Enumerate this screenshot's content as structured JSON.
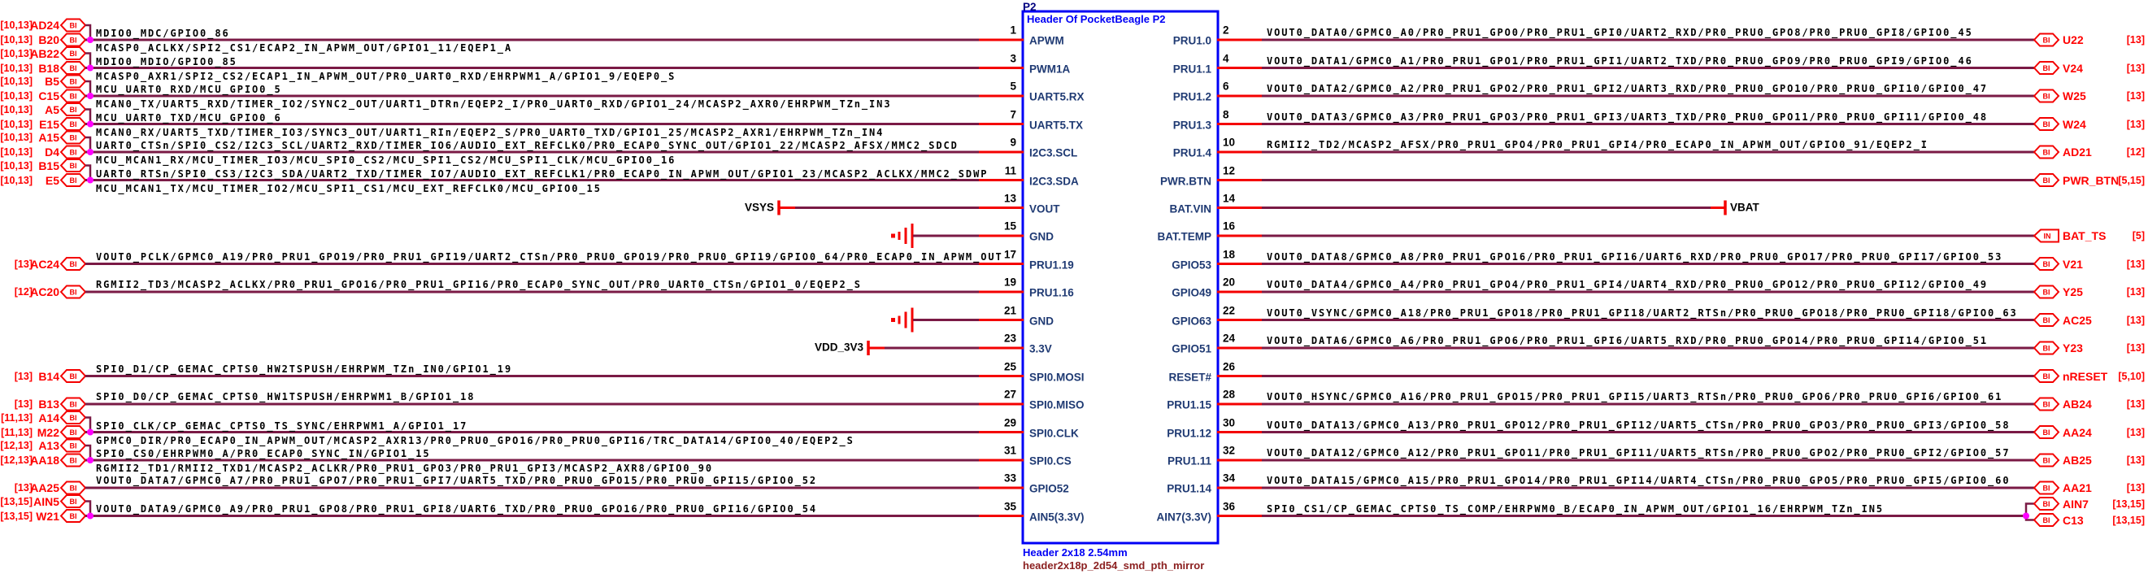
{
  "colors": {
    "wire": "#7a1a45",
    "pin_stub": "#f40000",
    "port_red": "#f40000",
    "junction": "#ff00ff",
    "box_blue": "#0000f5",
    "pin_name_blue": "#1f3a73",
    "refdes_navy": "#000080",
    "footprint_maroon": "#8b1f1f",
    "text_black": "#000000"
  },
  "schematic": {
    "refdes": "P2",
    "title": "Header Of PocketBeagle P2",
    "footer_type": "Header 2x18 2.54mm",
    "footer_footprint": "header2x18p_2d54_smd_pth_mirror",
    "port_labels": {
      "bidirectional": "BI",
      "input": "IN"
    },
    "pins_left": [
      {
        "num": "1",
        "name": "APWM"
      },
      {
        "num": "3",
        "name": "PWM1A"
      },
      {
        "num": "5",
        "name": "UART5.RX"
      },
      {
        "num": "7",
        "name": "UART5.TX"
      },
      {
        "num": "9",
        "name": "I2C3.SCL"
      },
      {
        "num": "11",
        "name": "I2C3.SDA"
      },
      {
        "num": "13",
        "name": "VOUT"
      },
      {
        "num": "15",
        "name": "GND"
      },
      {
        "num": "17",
        "name": "PRU1.19"
      },
      {
        "num": "19",
        "name": "PRU1.16"
      },
      {
        "num": "21",
        "name": "GND"
      },
      {
        "num": "23",
        "name": "3.3V"
      },
      {
        "num": "25",
        "name": "SPI0.MOSI"
      },
      {
        "num": "27",
        "name": "SPI0.MISO"
      },
      {
        "num": "29",
        "name": "SPI0.CLK"
      },
      {
        "num": "31",
        "name": "SPI0.CS"
      },
      {
        "num": "33",
        "name": "GPIO52"
      },
      {
        "num": "35",
        "name": "AIN5(3.3V)"
      }
    ],
    "pins_right": [
      {
        "num": "2",
        "name": "PRU1.0"
      },
      {
        "num": "4",
        "name": "PRU1.1"
      },
      {
        "num": "6",
        "name": "PRU1.2"
      },
      {
        "num": "8",
        "name": "PRU1.3"
      },
      {
        "num": "10",
        "name": "PRU1.4"
      },
      {
        "num": "12",
        "name": "PWR.BTN"
      },
      {
        "num": "14",
        "name": "BAT.VIN"
      },
      {
        "num": "16",
        "name": "BAT.TEMP"
      },
      {
        "num": "18",
        "name": "GPIO53"
      },
      {
        "num": "20",
        "name": "GPIO49"
      },
      {
        "num": "22",
        "name": "GPIO63"
      },
      {
        "num": "24",
        "name": "GPIO51"
      },
      {
        "num": "26",
        "name": "RESET#"
      },
      {
        "num": "28",
        "name": "PRU1.15"
      },
      {
        "num": "30",
        "name": "PRU1.12"
      },
      {
        "num": "32",
        "name": "PRU1.11"
      },
      {
        "num": "34",
        "name": "PRU1.14"
      },
      {
        "num": "36",
        "name": "AIN7(3.3V)"
      }
    ],
    "nets_left": [
      {
        "kind": "pair",
        "a": {
          "refs": "[10,13]",
          "ball": "AD24",
          "net": "MDIO0_MDC/GPIO0_86"
        },
        "b": {
          "refs": "[10,13]",
          "ball": "B20",
          "net": "MCASP0_ACLKX/SPI2_CS1/ECAP2_IN_APWM_OUT/GPIO1_11/EQEP1_A"
        }
      },
      {
        "kind": "pair",
        "a": {
          "refs": "[10,13]",
          "ball": "AB22",
          "net": "MDIO0_MDIO/GPIO0_85"
        },
        "b": {
          "refs": "[10,13]",
          "ball": "B18",
          "net": "MCASP0_AXR1/SPI2_CS2/ECAP1_IN_APWM_OUT/PR0_UART0_RXD/EHRPWM1_A/GPIO1_9/EQEP0_S"
        }
      },
      {
        "kind": "pair",
        "a": {
          "refs": "[10,13]",
          "ball": "B5",
          "net": "MCU_UART0_RXD/MCU_GPIO0_5"
        },
        "b": {
          "refs": "[10,13]",
          "ball": "C15",
          "net": "MCAN0_TX/UART5_RXD/TIMER_IO2/SYNC2_OUT/UART1_DTRn/EQEP2_I/PR0_UART0_RXD/GPIO1_24/MCASP2_AXR0/EHRPWM_TZn_IN3"
        }
      },
      {
        "kind": "pair",
        "a": {
          "refs": "[10,13]",
          "ball": "A5",
          "net": "MCU_UART0_TXD/MCU_GPIO0_6"
        },
        "b": {
          "refs": "[10,13]",
          "ball": "E15",
          "net": "MCAN0_RX/UART5_TXD/TIMER_IO3/SYNC3_OUT/UART1_RIn/EQEP2_S/PR0_UART0_TXD/GPIO1_25/MCASP2_AXR1/EHRPWM_TZn_IN4"
        }
      },
      {
        "kind": "pair",
        "a": {
          "refs": "[10,13]",
          "ball": "A15",
          "net": "UART0_CTSn/SPI0_CS2/I2C3_SCL/UART2_RXD/TIMER_IO6/AUDIO_EXT_REFCLK0/PR0_ECAP0_SYNC_OUT/GPIO1_22/MCASP2_AFSX/MMC2_SDCD"
        },
        "b": {
          "refs": "[10,13]",
          "ball": "D4",
          "net": "MCU_MCAN1_RX/MCU_TIMER_IO3/MCU_SPI0_CS2/MCU_SPI1_CS2/MCU_SPI1_CLK/MCU_GPIO0_16"
        }
      },
      {
        "kind": "pair",
        "a": {
          "refs": "[10,13]",
          "ball": "B15",
          "net": "UART0_RTSn/SPI0_CS3/I2C3_SDA/UART2_TXD/TIMER_IO7/AUDIO_EXT_REFCLK1/PR0_ECAP0_IN_APWM_OUT/GPIO1_23/MCASP2_ACLKX/MMC2_SDWP"
        },
        "b": {
          "refs": "[10,13]",
          "ball": "E5",
          "net": "MCU_MCAN1_TX/MCU_TIMER_IO2/MCU_SPI1_CS1/MCU_EXT_REFCLK0/MCU_GPIO0_15"
        }
      },
      {
        "kind": "power",
        "label": "VSYS"
      },
      {
        "kind": "gnd"
      },
      {
        "kind": "single",
        "refs": "[13]",
        "ball": "AC24",
        "net": "VOUT0_PCLK/GPMC0_A19/PR0_PRU1_GPO19/PR0_PRU1_GPI19/UART2_CTSn/PR0_PRU0_GPO19/PR0_PRU0_GPI19/GPIO0_64/PR0_ECAP0_IN_APWM_OUT"
      },
      {
        "kind": "single",
        "refs": "[12]",
        "ball": "AC20",
        "net": "RGMII2_TD3/MCASP2_ACLKX/PR0_PRU1_GPO16/PR0_PRU1_GPI16/PR0_ECAP0_SYNC_OUT/PR0_UART0_CTSn/GPIO1_0/EQEP2_S"
      },
      {
        "kind": "gnd"
      },
      {
        "kind": "power",
        "label": "VDD_3V3"
      },
      {
        "kind": "single",
        "refs": "[13]",
        "ball": "B14",
        "net": "SPI0_D1/CP_GEMAC_CPTS0_HW2TSPUSH/EHRPWM_TZn_IN0/GPIO1_19"
      },
      {
        "kind": "single",
        "refs": "[13]",
        "ball": "B13",
        "net": "SPI0_D0/CP_GEMAC_CPTS0_HW1TSPUSH/EHRPWM1_B/GPIO1_18"
      },
      {
        "kind": "pair",
        "a": {
          "refs": "[11,13]",
          "ball": "A14",
          "net": "SPI0_CLK/CP_GEMAC_CPTS0_TS_SYNC/EHRPWM1_A/GPIO1_17"
        },
        "b": {
          "refs": "[11,13]",
          "ball": "M22",
          "net": "GPMC0_DIR/PR0_ECAP0_IN_APWM_OUT/MCASP2_AXR13/PR0_PRU0_GPO16/PR0_PRU0_GPI16/TRC_DATA14/GPIO0_40/EQEP2_S"
        }
      },
      {
        "kind": "pair",
        "a": {
          "refs": "[12,13]",
          "ball": "A13",
          "net": "SPI0_CS0/EHRPWM0_A/PR0_ECAP0_SYNC_IN/GPIO1_15"
        },
        "b": {
          "refs": "[12,13]",
          "ball": "AA18",
          "net": "RGMII2_TD1/RMII2_TXD1/MCASP2_ACLKR/PR0_PRU1_GPO3/PR0_PRU1_GPI3/MCASP2_AXR8/GPIO0_90"
        }
      },
      {
        "kind": "single",
        "refs": "[13]",
        "ball": "AA25",
        "net": "VOUT0_DATA7/GPMC0_A7/PR0_PRU1_GPO7/PR0_PRU1_GPI7/UART5_TXD/PR0_PRU0_GPO15/PR0_PRU0_GPI15/GPIO0_52"
      },
      {
        "kind": "pair",
        "a": {
          "refs": "[13,15]",
          "ball": "AIN5",
          "net": ""
        },
        "b": {
          "refs": "[13,15]",
          "ball": "W21",
          "net": "VOUT0_DATA9/GPMC0_A9/PR0_PRU1_GPO8/PR0_PRU1_GPI8/UART6_TXD/PR0_PRU0_GPO16/PR0_PRU0_GPI16/GPIO0_54",
          "net_above": true
        }
      }
    ],
    "nets_right": [
      {
        "kind": "port",
        "refs": "[13]",
        "ball": "U22",
        "net": "VOUT0_DATA0/GPMC0_A0/PR0_PRU1_GPO0/PR0_PRU1_GPI0/UART2_RXD/PR0_PRU0_GPO8/PR0_PRU0_GPI8/GPIO0_45"
      },
      {
        "kind": "port",
        "refs": "[13]",
        "ball": "V24",
        "net": "VOUT0_DATA1/GPMC0_A1/PR0_PRU1_GPO1/PR0_PRU1_GPI1/UART2_TXD/PR0_PRU0_GPO9/PR0_PRU0_GPI9/GPIO0_46"
      },
      {
        "kind": "port",
        "refs": "[13]",
        "ball": "W25",
        "net": "VOUT0_DATA2/GPMC0_A2/PR0_PRU1_GPO2/PR0_PRU1_GPI2/UART3_RXD/PR0_PRU0_GPO10/PR0_PRU0_GPI10/GPIO0_47"
      },
      {
        "kind": "port",
        "refs": "[13]",
        "ball": "W24",
        "net": "VOUT0_DATA3/GPMC0_A3/PR0_PRU1_GPO3/PR0_PRU1_GPI3/UART3_TXD/PR0_PRU0_GPO11/PR0_PRU0_GPI11/GPIO0_48"
      },
      {
        "kind": "port",
        "refs": "[12]",
        "ball": "AD21",
        "net": "RGMII2_TD2/MCASP2_AFSX/PR0_PRU1_GPO4/PR0_PRU1_GPI4/PR0_ECAP0_IN_APWM_OUT/GPIO0_91/EQEP2_I"
      },
      {
        "kind": "port",
        "refs": "[5,15]",
        "ball": "PWR_BTN",
        "net": ""
      },
      {
        "kind": "power",
        "label": "VBAT"
      },
      {
        "kind": "port_in",
        "refs": "[5]",
        "ball": "BAT_TS",
        "net": ""
      },
      {
        "kind": "port",
        "refs": "[13]",
        "ball": "V21",
        "net": "VOUT0_DATA8/GPMC0_A8/PR0_PRU1_GPO16/PR0_PRU1_GPI16/UART6_RXD/PR0_PRU0_GPO17/PR0_PRU0_GPI17/GPIO0_53"
      },
      {
        "kind": "port",
        "refs": "[13]",
        "ball": "Y25",
        "net": "VOUT0_DATA4/GPMC0_A4/PR0_PRU1_GPO4/PR0_PRU1_GPI4/UART4_RXD/PR0_PRU0_GPO12/PR0_PRU0_GPI12/GPIO0_49"
      },
      {
        "kind": "port",
        "refs": "[13]",
        "ball": "AC25",
        "net": "VOUT0_VSYNC/GPMC0_A18/PR0_PRU1_GPO18/PR0_PRU1_GPI18/UART2_RTSn/PR0_PRU0_GPO18/PR0_PRU0_GPI18/GPIO0_63"
      },
      {
        "kind": "port",
        "refs": "[13]",
        "ball": "Y23",
        "net": "VOUT0_DATA6/GPMC0_A6/PR0_PRU1_GPO6/PR0_PRU1_GPI6/UART5_RXD/PR0_PRU0_GPO14/PR0_PRU0_GPI14/GPIO0_51"
      },
      {
        "kind": "port",
        "refs": "[5,10]",
        "ball": "nRESET",
        "net": ""
      },
      {
        "kind": "port",
        "refs": "[13]",
        "ball": "AB24",
        "net": "VOUT0_HSYNC/GPMC0_A16/PR0_PRU1_GPO15/PR0_PRU1_GPI15/UART3_RTSn/PR0_PRU0_GPO6/PR0_PRU0_GPI6/GPIO0_61"
      },
      {
        "kind": "port",
        "refs": "[13]",
        "ball": "AA24",
        "net": "VOUT0_DATA13/GPMC0_A13/PR0_PRU1_GPO12/PR0_PRU1_GPI12/UART5_CTSn/PR0_PRU0_GPO3/PR0_PRU0_GPI3/GPIO0_58"
      },
      {
        "kind": "port",
        "refs": "[13]",
        "ball": "AB25",
        "net": "VOUT0_DATA12/GPMC0_A12/PR0_PRU1_GPO11/PR0_PRU1_GPI11/UART5_RTSn/PR0_PRU0_GPO2/PR0_PRU0_GPI2/GPIO0_57"
      },
      {
        "kind": "port",
        "refs": "[13]",
        "ball": "AA21",
        "net": "VOUT0_DATA15/GPMC0_A15/PR0_PRU1_GPO14/PR0_PRU1_GPI14/UART4_CTSn/PR0_PRU0_GPO5/PR0_PRU0_GPI5/GPIO0_60"
      },
      {
        "kind": "pair",
        "net": "SPI0_CS1/CP_GEMAC_CPTS0_TS_COMP/EHRPWM0_B/ECAP0_IN_APWM_OUT/GPIO1_16/EHRPWM_TZn_IN5",
        "a": {
          "refs": "[13,15]",
          "ball": "AIN7"
        },
        "b": {
          "refs": "[13,15]",
          "ball": "C13"
        }
      }
    ]
  }
}
